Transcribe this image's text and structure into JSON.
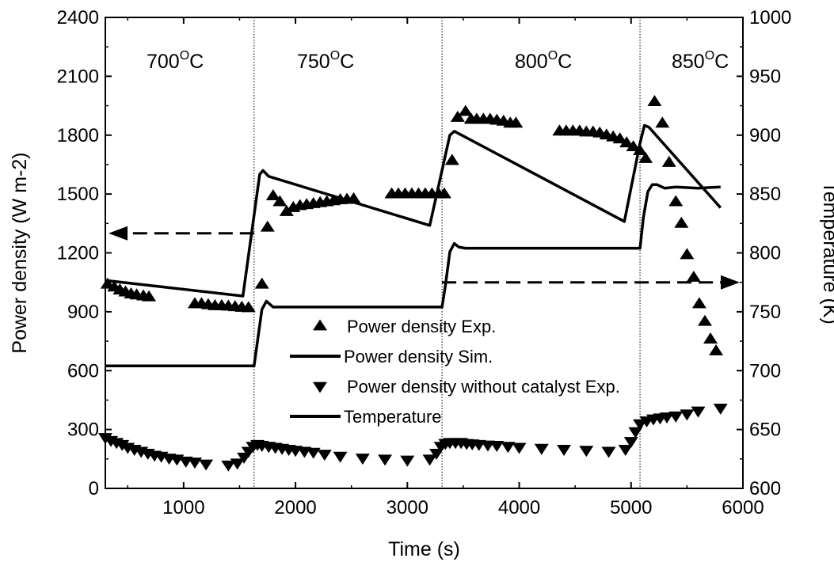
{
  "chart_data": {
    "type": "line",
    "xlabel": "Time (s)",
    "ylabel_left": "Power density (W m-2)",
    "ylabel_right": "Temperature (K)",
    "xlim": [
      300,
      6000
    ],
    "ylim_left": [
      0,
      2400
    ],
    "ylim_right": [
      600,
      1000
    ],
    "x_ticks": [
      1000,
      2000,
      3000,
      4000,
      5000,
      6000
    ],
    "y_left_ticks": [
      0,
      300,
      600,
      900,
      1200,
      1500,
      1800,
      2100,
      2400
    ],
    "y_right_ticks": [
      600,
      650,
      700,
      750,
      800,
      850,
      900,
      950,
      1000
    ],
    "grid": false,
    "legend_position": "center",
    "temperature_regions": [
      {
        "base": "700",
        "sup": "O",
        "unit": "C",
        "x_start": 300,
        "x_end": 1630
      },
      {
        "base": "750",
        "sup": "O",
        "unit": "C",
        "x_start": 1630,
        "x_end": 3310
      },
      {
        "base": "800",
        "sup": "O",
        "unit": "C",
        "x_start": 3310,
        "x_end": 5080
      },
      {
        "base": "850",
        "sup": "O",
        "unit": "C",
        "x_start": 5080,
        "x_end": 6000
      }
    ],
    "region_dividers_x": [
      1630,
      3310,
      5080
    ],
    "arrows": [
      {
        "axis": "left",
        "direction": "left",
        "y": 1300,
        "x_from": 1630,
        "x_to": 300
      },
      {
        "axis": "right",
        "direction": "right",
        "y": 775,
        "x_from": 3310,
        "x_to": 6000
      }
    ],
    "series": [
      {
        "name": "Power density Exp.",
        "axis": "left",
        "style": "triangle-up",
        "x": [
          320,
          380,
          430,
          480,
          530,
          580,
          640,
          690,
          1100,
          1160,
          1220,
          1280,
          1340,
          1400,
          1460,
          1520,
          1580,
          1700,
          1750,
          1800,
          1860,
          1920,
          1980,
          2040,
          2100,
          2160,
          2220,
          2280,
          2340,
          2400,
          2460,
          2520,
          2860,
          2920,
          2980,
          3040,
          3100,
          3160,
          3220,
          3280,
          3330,
          3400,
          3450,
          3520,
          3570,
          3620,
          3680,
          3740,
          3800,
          3860,
          3920,
          3970,
          4360,
          4420,
          4480,
          4540,
          4600,
          4660,
          4720,
          4780,
          4840,
          4900,
          4960,
          5020,
          5080,
          5130,
          5210,
          5280,
          5340,
          5400,
          5450,
          5500,
          5560,
          5610,
          5660,
          5710,
          5760
        ],
        "values": [
          1040,
          1025,
          1010,
          1000,
          990,
          985,
          980,
          975,
          940,
          940,
          935,
          930,
          930,
          928,
          925,
          922,
          920,
          1040,
          1330,
          1490,
          1460,
          1410,
          1430,
          1440,
          1445,
          1450,
          1455,
          1460,
          1465,
          1470,
          1472,
          1475,
          1500,
          1500,
          1500,
          1500,
          1500,
          1500,
          1500,
          1500,
          1500,
          1670,
          1890,
          1920,
          1880,
          1880,
          1880,
          1880,
          1875,
          1870,
          1860,
          1860,
          1820,
          1820,
          1820,
          1820,
          1815,
          1815,
          1810,
          1800,
          1790,
          1780,
          1760,
          1740,
          1720,
          1680,
          1970,
          1860,
          1660,
          1460,
          1350,
          1190,
          1075,
          940,
          850,
          760,
          700
        ]
      },
      {
        "name": "Power density Sim.",
        "axis": "left",
        "style": "line",
        "x": [
          300,
          1530,
          1680,
          1710,
          1760,
          3200,
          3380,
          3420,
          4940,
          5080,
          5120,
          5160,
          5800
        ],
        "values": [
          1060,
          980,
          1600,
          1620,
          1590,
          1340,
          1800,
          1820,
          1360,
          1760,
          1850,
          1840,
          1430
        ]
      },
      {
        "name": "Power density without catalyst Exp.",
        "axis": "left",
        "style": "triangle-down",
        "x": [
          300,
          350,
          400,
          450,
          500,
          560,
          620,
          680,
          740,
          800,
          870,
          940,
          1020,
          1100,
          1200,
          1400,
          1480,
          1540,
          1580,
          1620,
          1660,
          1700,
          1760,
          1820,
          1880,
          1940,
          2000,
          2080,
          2160,
          2260,
          2400,
          2600,
          2800,
          3000,
          3200,
          3260,
          3300,
          3340,
          3380,
          3430,
          3480,
          3530,
          3580,
          3640,
          3720,
          3800,
          3900,
          4000,
          4200,
          4400,
          4600,
          4800,
          4950,
          5000,
          5040,
          5080,
          5140,
          5200,
          5260,
          5320,
          5400,
          5500,
          5600,
          5800
        ],
        "values": [
          260,
          245,
          235,
          225,
          210,
          200,
          190,
          180,
          170,
          165,
          155,
          150,
          140,
          135,
          125,
          120,
          130,
          160,
          190,
          215,
          225,
          220,
          215,
          210,
          205,
          200,
          195,
          190,
          185,
          175,
          165,
          155,
          150,
          145,
          150,
          180,
          215,
          230,
          235,
          235,
          235,
          230,
          228,
          225,
          222,
          220,
          215,
          210,
          205,
          200,
          195,
          190,
          200,
          240,
          290,
          330,
          345,
          355,
          360,
          365,
          370,
          380,
          395,
          410
        ]
      },
      {
        "name": "Temperature",
        "axis": "right",
        "style": "line",
        "x": [
          300,
          1000,
          1500,
          1630,
          1660,
          1700,
          1740,
          1800,
          2000,
          2500,
          3000,
          3310,
          3340,
          3380,
          3420,
          3460,
          3520,
          4000,
          4500,
          5000,
          5080,
          5110,
          5150,
          5190,
          5230,
          5300,
          5400,
          5600,
          5800
        ],
        "values": [
          704,
          704,
          704,
          704,
          725,
          752,
          759,
          754,
          754,
          754,
          754,
          754,
          772,
          801,
          808,
          805,
          804,
          804,
          804,
          804,
          804,
          830,
          852,
          858,
          858,
          855,
          856,
          855,
          856
        ]
      }
    ]
  }
}
